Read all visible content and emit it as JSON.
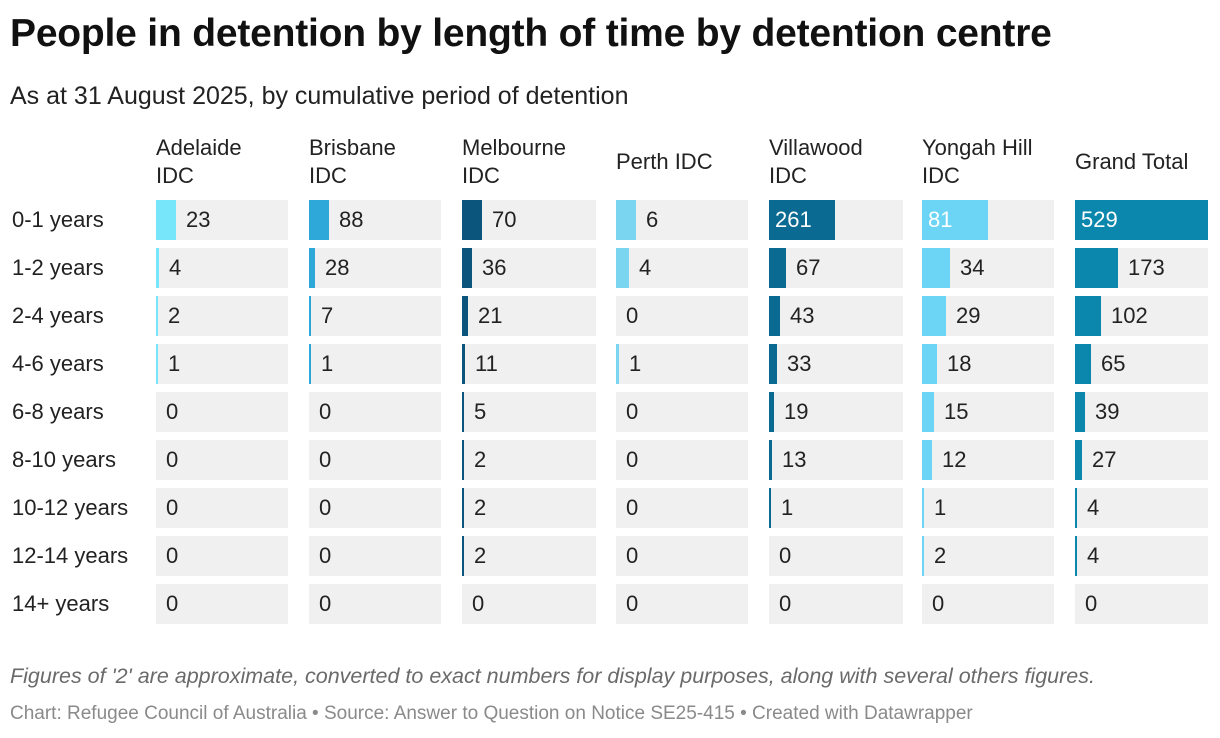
{
  "title": "People in detention by length of time by detention centre",
  "subtitle": "As at 31 August 2025, by cumulative period of detention",
  "note": "Figures of '2' are approximate, converted to exact numbers for display purposes, along with several others figures.",
  "credit": "Chart: Refugee Council of Australia • Source: Answer to Question on Notice SE25-415 • Created with Datawrapper",
  "chart_data": {
    "type": "table",
    "title": "People in detention by length of time by detention centre",
    "columns": [
      {
        "name": "Adelaide IDC",
        "color": "#78e6fa",
        "values": [
          23,
          4,
          2,
          1,
          0,
          0,
          0,
          0,
          0
        ]
      },
      {
        "name": "Brisbane IDC",
        "color": "#2ea8d8",
        "values": [
          88,
          28,
          7,
          1,
          0,
          0,
          0,
          0,
          0
        ]
      },
      {
        "name": "Melbourne IDC",
        "color": "#0b557c",
        "values": [
          70,
          36,
          21,
          11,
          5,
          2,
          2,
          2,
          0
        ]
      },
      {
        "name": "Perth IDC",
        "color": "#7ad6f0",
        "values": [
          6,
          4,
          0,
          1,
          0,
          0,
          0,
          0,
          0
        ]
      },
      {
        "name": "Villawood IDC",
        "color": "#0a6a91",
        "values": [
          261,
          67,
          43,
          33,
          19,
          13,
          1,
          0,
          0
        ]
      },
      {
        "name": "Yongah Hill IDC",
        "color": "#6cd4f5",
        "values": [
          81,
          34,
          29,
          18,
          15,
          12,
          1,
          2,
          0
        ]
      },
      {
        "name": "Grand Total",
        "color": "#0b86ad",
        "values": [
          529,
          173,
          102,
          65,
          39,
          27,
          4,
          4,
          0
        ]
      }
    ],
    "rows": [
      "0-1 years",
      "1-2 years",
      "2-4 years",
      "4-6 years",
      "6-8 years",
      "8-10 years",
      "10-12 years",
      "12-14 years",
      "14+ years"
    ]
  }
}
